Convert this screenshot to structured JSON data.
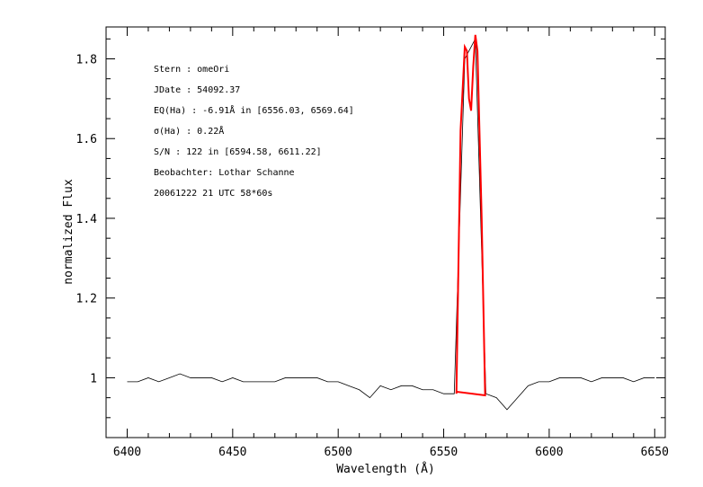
{
  "chart_data": {
    "type": "line",
    "title": "",
    "xlabel": "Wavelength (Å)",
    "ylabel": "normalized Flux",
    "xlim": [
      6390,
      6655
    ],
    "ylim": [
      0.85,
      1.88
    ],
    "xticks": [
      6400,
      6450,
      6500,
      6550,
      6600,
      6650
    ],
    "xtick_labels": [
      "6400",
      "6450",
      "6500",
      "6550",
      "6600",
      "6650"
    ],
    "yticks": [
      1.0,
      1.2,
      1.4,
      1.6,
      1.8
    ],
    "ytick_labels": [
      "1",
      "1.2",
      "1.4",
      "1.6",
      "1.8"
    ],
    "grid": false,
    "annotations": [
      "Stern   : omeOri",
      "JDate   : 54092.37",
      "EQ(Ha) : -6.91Å in [6556.03, 6569.64]",
      "σ(Ha)    : 0.22Å",
      "S/N     : 122 in [6594.58, 6611.22]",
      "Beobachter: Lothar Schanne",
      "20061222 21 UTC 58*60s"
    ],
    "series": [
      {
        "color": "#000000",
        "x": [
          6400,
          6405,
          6410,
          6415,
          6420,
          6425,
          6430,
          6435,
          6440,
          6445,
          6450,
          6455,
          6460,
          6465,
          6470,
          6475,
          6480,
          6485,
          6490,
          6495,
          6500,
          6505,
          6510,
          6515,
          6520,
          6525,
          6530,
          6535,
          6540,
          6545,
          6550,
          6555,
          6560,
          6565,
          6570,
          6575,
          6580,
          6585,
          6590,
          6595,
          6600,
          6605,
          6610,
          6615,
          6620,
          6625,
          6630,
          6635,
          6640,
          6645,
          6650
        ],
        "y": [
          0.99,
          0.99,
          1.0,
          0.99,
          1.0,
          1.01,
          1.0,
          1.0,
          1.0,
          0.99,
          1.0,
          0.99,
          0.99,
          0.99,
          0.99,
          1.0,
          1.0,
          1.0,
          1.0,
          0.99,
          0.99,
          0.98,
          0.97,
          0.95,
          0.98,
          0.97,
          0.98,
          0.98,
          0.97,
          0.97,
          0.96,
          0.96,
          1.8,
          1.85,
          0.96,
          0.95,
          0.92,
          0.95,
          0.98,
          0.99,
          0.99,
          1.0,
          1.0,
          1.0,
          0.99,
          1.0,
          1.0,
          1.0,
          0.99,
          1.0,
          1.0
        ]
      }
    ],
    "highlight": {
      "color": "#ff0000",
      "x": [
        6556.03,
        6558,
        6560,
        6561,
        6562,
        6563,
        6564,
        6565,
        6566,
        6568,
        6569.64,
        6556.03
      ],
      "y": [
        0.96,
        1.62,
        1.83,
        1.82,
        1.7,
        1.67,
        1.78,
        1.86,
        1.82,
        1.4,
        0.956,
        0.965
      ]
    }
  }
}
